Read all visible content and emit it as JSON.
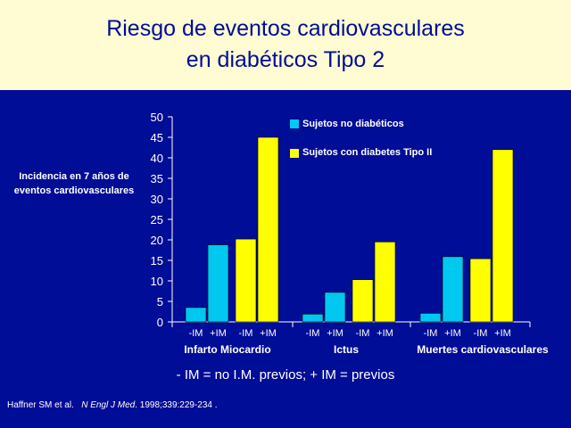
{
  "title": {
    "line1": "Riesgo de eventos cardiovasculares",
    "line2": "en diabéticos Tipo 2"
  },
  "footnote": "- IM = no I.M. previos; + IM = previos",
  "citation": {
    "authors": "Haffner SM et al.",
    "journal": "N Engl J Med",
    "details": ". 1998;339:229-234 ."
  },
  "colors": {
    "background": "#000d96",
    "title_band": "#fffbd2",
    "series_no_diabetic": "#00c8f0",
    "series_diabetic": "#ffff00"
  },
  "chart_data": {
    "type": "bar",
    "ylabel_lines": [
      "Incidencia en 7 años de",
      "eventos cardiovasculares"
    ],
    "ylim": [
      0,
      50
    ],
    "yticks": [
      0,
      5,
      10,
      15,
      20,
      25,
      30,
      35,
      40,
      45,
      50
    ],
    "grid": false,
    "legend_placement": "top-right",
    "groups": [
      {
        "name": "Infarto Miocardio",
        "subgroups": [
          {
            "label": "-IM",
            "no_diabetic": 3.5,
            "diabetic": 20.2
          },
          {
            "label": "+IM",
            "no_diabetic": 18.8,
            "diabetic": 45.0
          }
        ]
      },
      {
        "name": "Ictus",
        "subgroups": [
          {
            "label": "-IM",
            "no_diabetic": 1.9,
            "diabetic": 10.3
          },
          {
            "label": "+IM",
            "no_diabetic": 7.2,
            "diabetic": 19.5
          }
        ]
      },
      {
        "name": "Muertes cardiovasculares",
        "subgroups": [
          {
            "label": "-IM",
            "no_diabetic": 2.1,
            "diabetic": 15.4
          },
          {
            "label": "+IM",
            "no_diabetic": 15.9,
            "diabetic": 42.0
          }
        ]
      }
    ],
    "series": [
      {
        "key": "no_diabetic",
        "name": "Sujetos no diabéticos"
      },
      {
        "key": "diabetic",
        "name": "Sujetos con diabetes Tipo II"
      }
    ]
  }
}
